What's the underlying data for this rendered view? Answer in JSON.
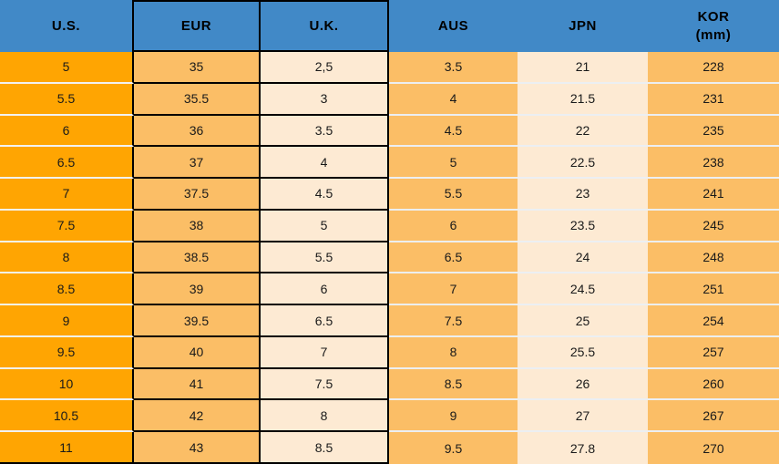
{
  "colors": {
    "header_blue": "#4189C7",
    "us_column_orange": "#FFA502",
    "mid_orange": "#FBBE66",
    "cream": "#FDEAD3",
    "black_border": "#000000",
    "light_separator": "#ECEFF2"
  },
  "chart_data": {
    "type": "table",
    "title": "",
    "headers": [
      "U.S.",
      "EUR",
      "U.K.",
      "AUS",
      "JPN",
      "KOR\n(mm)"
    ],
    "rows": [
      [
        "5",
        "35",
        "2,5",
        "3.5",
        "21",
        "228"
      ],
      [
        "5.5",
        "35.5",
        "3",
        "4",
        "21.5",
        "231"
      ],
      [
        "6",
        "36",
        "3.5",
        "4.5",
        "22",
        "235"
      ],
      [
        "6.5",
        "37",
        "4",
        "5",
        "22.5",
        "238"
      ],
      [
        "7",
        "37.5",
        "4.5",
        "5.5",
        "23",
        "241"
      ],
      [
        "7.5",
        "38",
        "5",
        "6",
        "23.5",
        "245"
      ],
      [
        "8",
        "38.5",
        "5.5",
        "6.5",
        "24",
        "248"
      ],
      [
        "8.5",
        "39",
        "6",
        "7",
        "24.5",
        "251"
      ],
      [
        "9",
        "39.5",
        "6.5",
        "7.5",
        "25",
        "254"
      ],
      [
        "9.5",
        "40",
        "7",
        "8",
        "25.5",
        "257"
      ],
      [
        "10",
        "41",
        "7.5",
        "8.5",
        "26",
        "260"
      ],
      [
        "10.5",
        "42",
        "8",
        "9",
        "27",
        "267"
      ],
      [
        "11",
        "43",
        "8.5",
        "9.5",
        "27.8",
        "270"
      ]
    ]
  }
}
